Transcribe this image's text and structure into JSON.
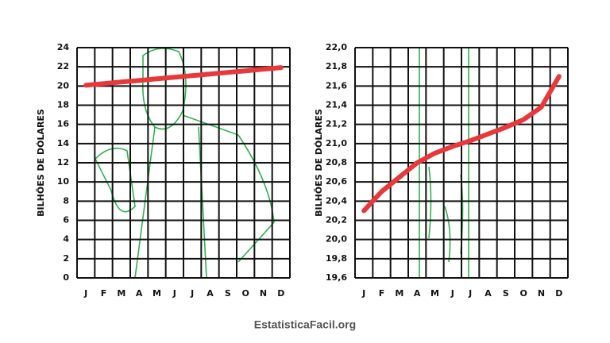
{
  "chart_data": [
    {
      "type": "line",
      "categories": [
        "J",
        "F",
        "M",
        "A",
        "M",
        "J",
        "J",
        "A",
        "S",
        "O",
        "N",
        "D"
      ],
      "ylabel": "BILHÕES DE DÓLARES",
      "ylim": [
        0,
        24
      ],
      "yticks": [
        0,
        2,
        4,
        6,
        8,
        10,
        12,
        14,
        16,
        18,
        20,
        22,
        24
      ],
      "grid": true,
      "color": "#e8383b",
      "values": [
        20.08,
        20.25,
        20.42,
        20.58,
        20.75,
        20.92,
        21.08,
        21.25,
        21.42,
        21.58,
        21.75,
        21.92
      ]
    },
    {
      "type": "line",
      "categories": [
        "J",
        "F",
        "M",
        "A",
        "M",
        "J",
        "J",
        "A",
        "S",
        "O",
        "N",
        "D"
      ],
      "ylabel": "BILHÕES DE DÓLARES",
      "ylim": [
        19.6,
        22.0
      ],
      "yticks": [
        {
          "value": 19.6,
          "label": "19,6"
        },
        {
          "value": 19.8,
          "label": "19,8"
        },
        {
          "value": 20.0,
          "label": "20,0"
        },
        {
          "value": 20.2,
          "label": "20,2"
        },
        {
          "value": 20.4,
          "label": "20,4"
        },
        {
          "value": 20.6,
          "label": "20,6"
        },
        {
          "value": 20.8,
          "label": "20,8"
        },
        {
          "value": 21.0,
          "label": "21,0"
        },
        {
          "value": 21.2,
          "label": "21,2"
        },
        {
          "value": 21.4,
          "label": "21,4"
        },
        {
          "value": 21.6,
          "label": "21,6"
        },
        {
          "value": 21.8,
          "label": "21,8"
        },
        {
          "value": 22.0,
          "label": "22,0"
        }
      ],
      "grid": true,
      "color": "#e8383b",
      "values": [
        20.3,
        20.5,
        20.65,
        20.8,
        20.9,
        20.97,
        21.03,
        21.1,
        21.17,
        21.25,
        21.38,
        21.7
      ]
    }
  ],
  "footer": "EstatisticaFacil.org"
}
